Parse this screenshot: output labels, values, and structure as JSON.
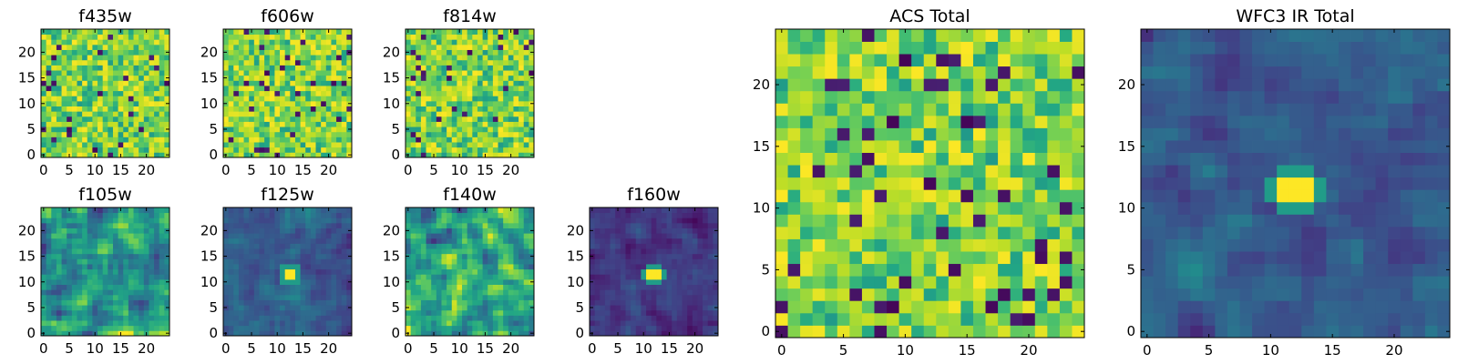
{
  "chart_data": [
    {
      "id": "f435w",
      "type": "heatmap",
      "title": "f435w",
      "colormap": "viridis",
      "grid_size": [
        25,
        25
      ],
      "xlim": [
        0,
        24
      ],
      "ylim": [
        0,
        24
      ],
      "xticks": [
        0,
        5,
        10,
        15,
        20
      ],
      "yticks": [
        0,
        5,
        10,
        15,
        20
      ],
      "pattern": "noise",
      "source_peak": null,
      "value_scale": "normalized 0-1"
    },
    {
      "id": "f606w",
      "type": "heatmap",
      "title": "f606w",
      "colormap": "viridis",
      "grid_size": [
        25,
        25
      ],
      "xlim": [
        0,
        24
      ],
      "ylim": [
        0,
        24
      ],
      "xticks": [
        0,
        5,
        10,
        15,
        20
      ],
      "yticks": [
        0,
        5,
        10,
        15,
        20
      ],
      "pattern": "noise",
      "source_peak": null,
      "value_scale": "normalized 0-1"
    },
    {
      "id": "f814w",
      "type": "heatmap",
      "title": "f814w",
      "colormap": "viridis",
      "grid_size": [
        25,
        25
      ],
      "xlim": [
        0,
        24
      ],
      "ylim": [
        0,
        24
      ],
      "xticks": [
        0,
        5,
        10,
        15,
        20
      ],
      "yticks": [
        0,
        5,
        10,
        15,
        20
      ],
      "pattern": "noise",
      "source_peak": null,
      "value_scale": "normalized 0-1"
    },
    {
      "id": "f105w",
      "type": "heatmap",
      "title": "f105w",
      "colormap": "viridis",
      "grid_size": [
        25,
        25
      ],
      "xlim": [
        0,
        24
      ],
      "ylim": [
        0,
        24
      ],
      "xticks": [
        0,
        5,
        10,
        15,
        20
      ],
      "yticks": [
        0,
        5,
        10,
        15,
        20
      ],
      "pattern": "smooth-noise",
      "source_peak": null,
      "value_scale": "normalized 0-1"
    },
    {
      "id": "f125w",
      "type": "heatmap",
      "title": "f125w",
      "colormap": "viridis",
      "grid_size": [
        25,
        25
      ],
      "xlim": [
        0,
        24
      ],
      "ylim": [
        0,
        24
      ],
      "xticks": [
        0,
        5,
        10,
        15,
        20
      ],
      "yticks": [
        0,
        5,
        10,
        15,
        20
      ],
      "pattern": "dim-with-source",
      "source_peak": {
        "x": 12.5,
        "y": 11.5,
        "value": 1.0
      },
      "value_scale": "normalized 0-1"
    },
    {
      "id": "f140w",
      "type": "heatmap",
      "title": "f140w",
      "colormap": "viridis",
      "grid_size": [
        25,
        25
      ],
      "xlim": [
        0,
        24
      ],
      "ylim": [
        0,
        24
      ],
      "xticks": [
        0,
        5,
        10,
        15,
        20
      ],
      "yticks": [
        0,
        5,
        10,
        15,
        20
      ],
      "pattern": "smooth-noise",
      "source_peak": null,
      "value_scale": "normalized 0-1"
    },
    {
      "id": "f160w",
      "type": "heatmap",
      "title": "f160w",
      "colormap": "viridis",
      "grid_size": [
        25,
        25
      ],
      "xlim": [
        0,
        24
      ],
      "ylim": [
        0,
        24
      ],
      "xticks": [
        0,
        5,
        10,
        15,
        20
      ],
      "yticks": [
        0,
        5,
        10,
        15,
        20
      ],
      "pattern": "dark-with-source",
      "source_peak": {
        "x": 12,
        "y": 11.5,
        "value": 1.0
      },
      "value_scale": "normalized 0-1"
    },
    {
      "id": "acs-total",
      "type": "heatmap",
      "title": "ACS Total",
      "colormap": "viridis",
      "grid_size": [
        25,
        25
      ],
      "xlim": [
        0,
        24
      ],
      "ylim": [
        0,
        24
      ],
      "xticks": [
        0,
        5,
        10,
        15,
        20
      ],
      "yticks": [
        0,
        5,
        10,
        15,
        20
      ],
      "pattern": "noise",
      "source_peak": null,
      "value_scale": "normalized 0-1"
    },
    {
      "id": "wfc3-ir-total",
      "type": "heatmap",
      "title": "WFC3 IR Total",
      "colormap": "viridis",
      "grid_size": [
        25,
        25
      ],
      "xlim": [
        0,
        24
      ],
      "ylim": [
        0,
        24
      ],
      "xticks": [
        0,
        5,
        10,
        15,
        20
      ],
      "yticks": [
        0,
        5,
        10,
        15,
        20
      ],
      "pattern": "dim-with-source",
      "source_peak": {
        "x": 12,
        "y": 11.5,
        "value": 1.0
      },
      "value_scale": "normalized 0-1"
    }
  ]
}
